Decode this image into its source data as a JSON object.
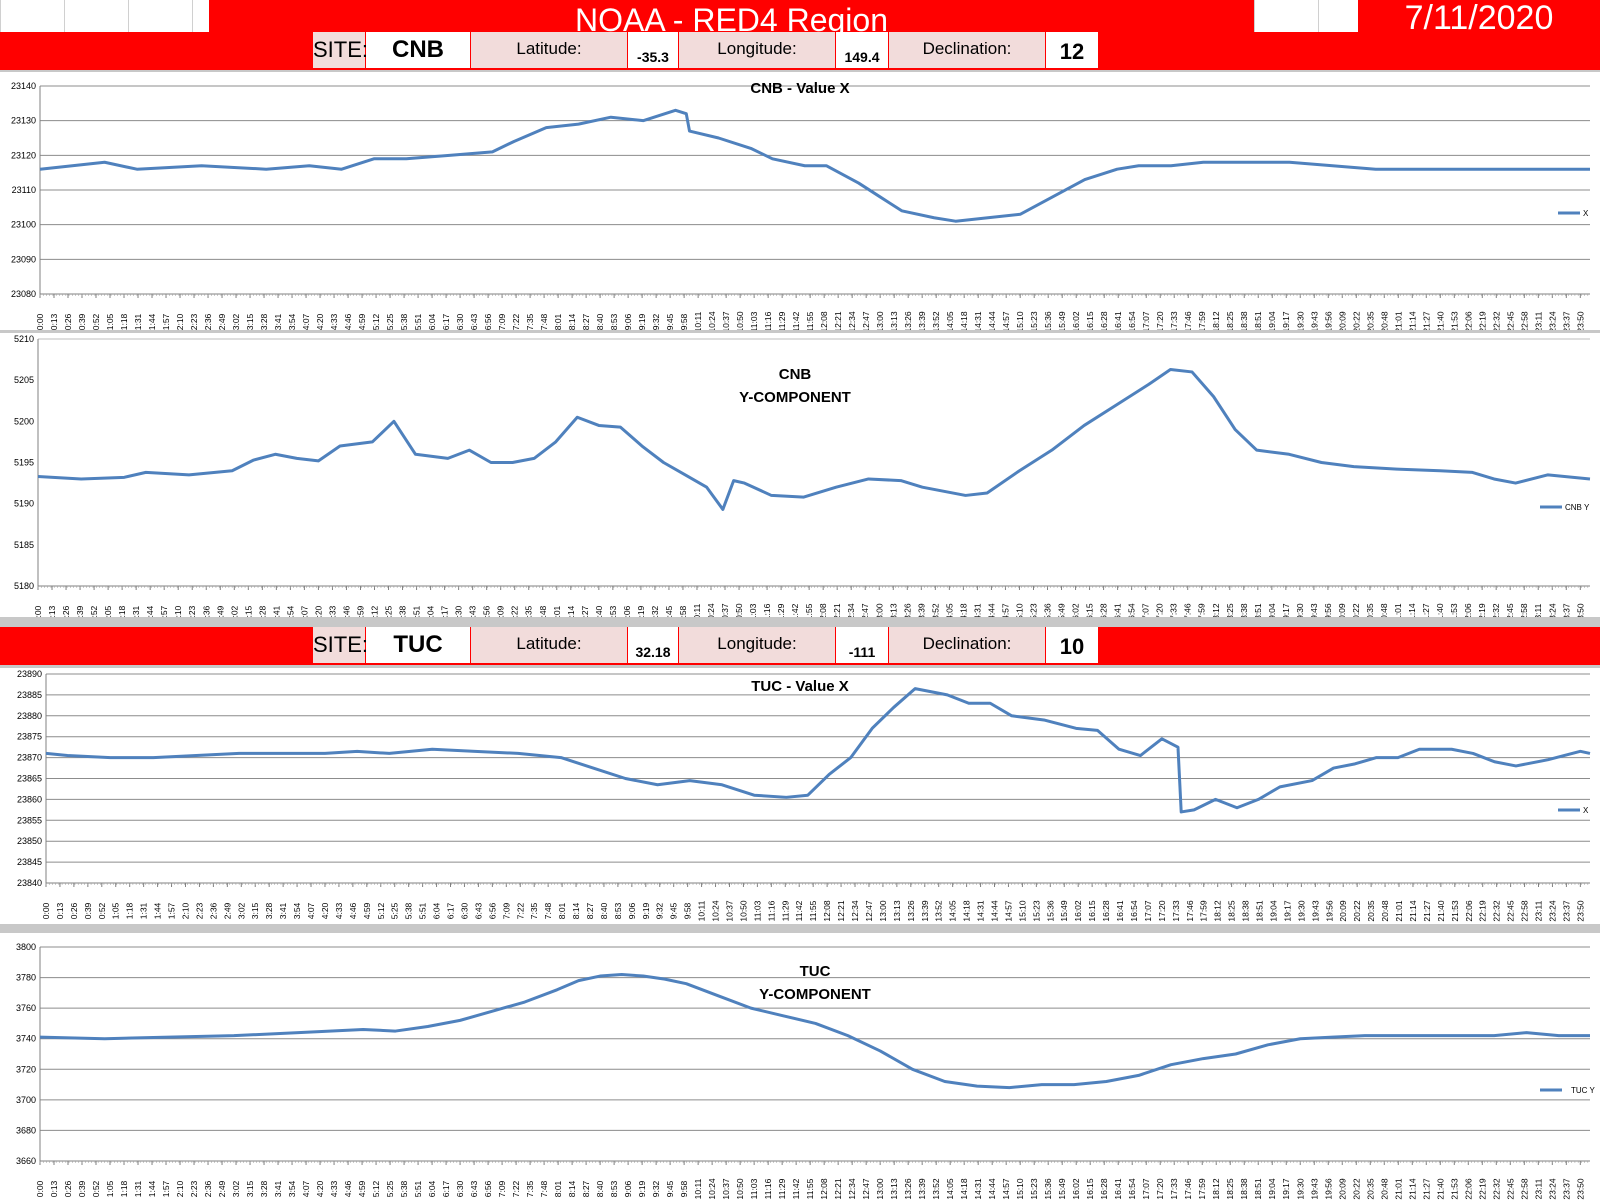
{
  "header": {
    "title": "NOAA - RED4 Region",
    "date": "7/11/2020",
    "colors": {
      "banner": "#ff0000",
      "cell": "#f2dcdb",
      "line": "#4f81bd"
    }
  },
  "sites": [
    {
      "site_label": "SITE:",
      "site": "CNB",
      "lat_label": "Latitude:",
      "lat": "-35.3",
      "lon_label": "Longitude:",
      "lon": "149.4",
      "decl_label": "Declination:",
      "decl": "12"
    },
    {
      "site_label": "SITE:",
      "site": "TUC",
      "lat_label": "Latitude:",
      "lat": "32.18",
      "lon_label": "Longitude:",
      "lon": "-111",
      "decl_label": "Declination:",
      "decl": "10"
    }
  ],
  "chart_data": [
    {
      "type": "line",
      "title": "CNB - Value X",
      "ylim": [
        23080,
        23140
      ],
      "yticks": [
        23080,
        23090,
        23100,
        23110,
        23120,
        23130,
        23140
      ],
      "x_range": [
        "0:00",
        "23:59"
      ],
      "x_tick_interval_min": 13,
      "grid": true,
      "legend_position": "right",
      "series": [
        {
          "name": "X",
          "points": [
            [
              "0:00",
              23116
            ],
            [
              "1:00",
              23118
            ],
            [
              "1:30",
              23116
            ],
            [
              "2:30",
              23117
            ],
            [
              "3:30",
              23116
            ],
            [
              "4:10",
              23117
            ],
            [
              "4:40",
              23116
            ],
            [
              "5:10",
              23119
            ],
            [
              "5:40",
              23119
            ],
            [
              "6:20",
              23120
            ],
            [
              "7:00",
              23121
            ],
            [
              "7:20",
              23124
            ],
            [
              "7:50",
              23128
            ],
            [
              "8:20",
              23129
            ],
            [
              "8:50",
              23131
            ],
            [
              "9:20",
              23130
            ],
            [
              "9:50",
              23133
            ],
            [
              "10:00",
              23132
            ],
            [
              "10:03",
              23127
            ],
            [
              "10:30",
              23125
            ],
            [
              "11:00",
              23122
            ],
            [
              "11:20",
              23119
            ],
            [
              "11:50",
              23117
            ],
            [
              "12:10",
              23117
            ],
            [
              "12:40",
              23112
            ],
            [
              "13:00",
              23108
            ],
            [
              "13:20",
              23104
            ],
            [
              "13:50",
              23102
            ],
            [
              "14:10",
              23101
            ],
            [
              "14:40",
              23102
            ],
            [
              "15:10",
              23103
            ],
            [
              "15:40",
              23108
            ],
            [
              "16:10",
              23113
            ],
            [
              "16:40",
              23116
            ],
            [
              "17:00",
              23117
            ],
            [
              "17:30",
              23117
            ],
            [
              "18:00",
              23118
            ],
            [
              "18:40",
              23118
            ],
            [
              "19:20",
              23118
            ],
            [
              "20:00",
              23117
            ],
            [
              "20:40",
              23116
            ],
            [
              "21:20",
              23116
            ],
            [
              "21:50",
              23116
            ],
            [
              "22:20",
              23116
            ],
            [
              "23:00",
              23116
            ],
            [
              "23:59",
              23116
            ]
          ]
        }
      ]
    },
    {
      "type": "line",
      "title": "CNB\nY-COMPONENT",
      "ylim": [
        5180,
        5210
      ],
      "yticks": [
        5180,
        5185,
        5190,
        5195,
        5200,
        5205,
        5210
      ],
      "x_range": [
        "0:00",
        "23:59"
      ],
      "x_tick_interval_min": 13,
      "grid": false,
      "legend_position": "right",
      "series": [
        {
          "name": "CNB Y",
          "points": [
            [
              "0:00",
              5193.3
            ],
            [
              "0:40",
              5193
            ],
            [
              "1:20",
              5193.2
            ],
            [
              "1:40",
              5193.8
            ],
            [
              "2:20",
              5193.5
            ],
            [
              "3:00",
              5194
            ],
            [
              "3:20",
              5195.3
            ],
            [
              "3:40",
              5196
            ],
            [
              "4:00",
              5195.5
            ],
            [
              "4:20",
              5195.2
            ],
            [
              "4:40",
              5197
            ],
            [
              "5:10",
              5197.5
            ],
            [
              "5:30",
              5200
            ],
            [
              "5:50",
              5196
            ],
            [
              "6:20",
              5195.5
            ],
            [
              "6:40",
              5196.5
            ],
            [
              "7:00",
              5195
            ],
            [
              "7:20",
              5195
            ],
            [
              "7:40",
              5195.5
            ],
            [
              "8:00",
              5197.5
            ],
            [
              "8:20",
              5200.5
            ],
            [
              "8:40",
              5199.5
            ],
            [
              "9:00",
              5199.3
            ],
            [
              "9:20",
              5197
            ],
            [
              "9:40",
              5195
            ],
            [
              "10:00",
              5193.5
            ],
            [
              "10:20",
              5192
            ],
            [
              "10:35",
              5189.3
            ],
            [
              "10:45",
              5192.8
            ],
            [
              "10:55",
              5192.5
            ],
            [
              "11:20",
              5191
            ],
            [
              "11:50",
              5190.8
            ],
            [
              "12:20",
              5192
            ],
            [
              "12:50",
              5193
            ],
            [
              "13:20",
              5192.8
            ],
            [
              "13:40",
              5192
            ],
            [
              "14:00",
              5191.5
            ],
            [
              "14:20",
              5191
            ],
            [
              "14:40",
              5191.3
            ],
            [
              "15:10",
              5194
            ],
            [
              "15:40",
              5196.5
            ],
            [
              "16:10",
              5199.5
            ],
            [
              "16:40",
              5202
            ],
            [
              "17:10",
              5204.5
            ],
            [
              "17:30",
              5206.3
            ],
            [
              "17:50",
              5206
            ],
            [
              "18:10",
              5203
            ],
            [
              "18:30",
              5199
            ],
            [
              "18:50",
              5196.5
            ],
            [
              "19:20",
              5196
            ],
            [
              "19:50",
              5195
            ],
            [
              "20:20",
              5194.5
            ],
            [
              "21:00",
              5194.2
            ],
            [
              "21:40",
              5194
            ],
            [
              "22:10",
              5193.8
            ],
            [
              "22:30",
              5193
            ],
            [
              "22:50",
              5192.5
            ],
            [
              "23:20",
              5193.5
            ],
            [
              "23:59",
              5193
            ]
          ]
        }
      ]
    },
    {
      "type": "line",
      "title": "TUC - Value X",
      "ylim": [
        23840,
        23890
      ],
      "yticks": [
        23840,
        23845,
        23850,
        23855,
        23860,
        23865,
        23870,
        23875,
        23880,
        23885,
        23890
      ],
      "x_range": [
        "0:00",
        "23:59"
      ],
      "x_tick_interval_min": 13,
      "grid": true,
      "legend_position": "right",
      "series": [
        {
          "name": "X",
          "points": [
            [
              "0:00",
              23871
            ],
            [
              "0:20",
              23870.5
            ],
            [
              "1:00",
              23870
            ],
            [
              "1:40",
              23870
            ],
            [
              "2:20",
              23870.5
            ],
            [
              "3:00",
              23871
            ],
            [
              "3:40",
              23871
            ],
            [
              "4:20",
              23871
            ],
            [
              "4:50",
              23871.5
            ],
            [
              "5:20",
              23871
            ],
            [
              "6:00",
              23872
            ],
            [
              "6:40",
              23871.5
            ],
            [
              "7:20",
              23871
            ],
            [
              "8:00",
              23870
            ],
            [
              "8:30",
              23867.5
            ],
            [
              "9:00",
              23865
            ],
            [
              "9:30",
              23863.5
            ],
            [
              "10:00",
              23864.5
            ],
            [
              "10:30",
              23863.5
            ],
            [
              "11:00",
              23861
            ],
            [
              "11:30",
              23860.5
            ],
            [
              "11:50",
              23861
            ],
            [
              "12:10",
              23866
            ],
            [
              "12:30",
              23870
            ],
            [
              "12:50",
              23877
            ],
            [
              "13:10",
              23882
            ],
            [
              "13:30",
              23886.5
            ],
            [
              "14:00",
              23885
            ],
            [
              "14:20",
              23883
            ],
            [
              "14:40",
              23883
            ],
            [
              "15:00",
              23880
            ],
            [
              "15:30",
              23879
            ],
            [
              "16:00",
              23877
            ],
            [
              "16:20",
              23876.5
            ],
            [
              "16:40",
              23872
            ],
            [
              "17:00",
              23870.5
            ],
            [
              "17:20",
              23874.5
            ],
            [
              "17:35",
              23872.5
            ],
            [
              "17:38",
              23857
            ],
            [
              "17:50",
              23857.5
            ],
            [
              "18:10",
              23860
            ],
            [
              "18:30",
              23858
            ],
            [
              "18:50",
              23860
            ],
            [
              "19:10",
              23863
            ],
            [
              "19:40",
              23864.5
            ],
            [
              "20:00",
              23867.5
            ],
            [
              "20:20",
              23868.5
            ],
            [
              "20:40",
              23870
            ],
            [
              "21:00",
              23870
            ],
            [
              "21:20",
              23872
            ],
            [
              "21:50",
              23872
            ],
            [
              "22:10",
              23871
            ],
            [
              "22:30",
              23869
            ],
            [
              "22:50",
              23868
            ],
            [
              "23:20",
              23869.5
            ],
            [
              "23:50",
              23871.5
            ],
            [
              "23:59",
              23871
            ]
          ]
        }
      ]
    },
    {
      "type": "line",
      "title": "TUC\nY-COMPONENT",
      "ylim": [
        3660,
        3800
      ],
      "yticks": [
        3660,
        3680,
        3700,
        3720,
        3740,
        3760,
        3780,
        3800
      ],
      "x_range": [
        "0:00",
        "23:59"
      ],
      "x_tick_interval_min": 13,
      "grid": true,
      "legend_position": "right",
      "series": [
        {
          "name": "TUC Y",
          "points": [
            [
              "0:00",
              3741
            ],
            [
              "1:00",
              3740
            ],
            [
              "2:00",
              3741
            ],
            [
              "3:00",
              3742
            ],
            [
              "4:00",
              3744
            ],
            [
              "5:00",
              3746
            ],
            [
              "5:30",
              3745
            ],
            [
              "6:00",
              3748
            ],
            [
              "6:30",
              3752
            ],
            [
              "7:00",
              3758
            ],
            [
              "7:30",
              3764
            ],
            [
              "8:00",
              3772
            ],
            [
              "8:20",
              3778
            ],
            [
              "8:40",
              3781
            ],
            [
              "9:00",
              3782
            ],
            [
              "9:20",
              3781
            ],
            [
              "9:40",
              3779
            ],
            [
              "10:00",
              3776
            ],
            [
              "10:30",
              3768
            ],
            [
              "11:00",
              3760
            ],
            [
              "11:30",
              3755
            ],
            [
              "12:00",
              3750
            ],
            [
              "12:30",
              3742
            ],
            [
              "13:00",
              3732
            ],
            [
              "13:30",
              3720
            ],
            [
              "14:00",
              3712
            ],
            [
              "14:30",
              3709
            ],
            [
              "15:00",
              3708
            ],
            [
              "15:30",
              3710
            ],
            [
              "16:00",
              3710
            ],
            [
              "16:30",
              3712
            ],
            [
              "17:00",
              3716
            ],
            [
              "17:30",
              3723
            ],
            [
              "18:00",
              3727
            ],
            [
              "18:30",
              3730
            ],
            [
              "19:00",
              3736
            ],
            [
              "19:30",
              3740
            ],
            [
              "20:00",
              3741
            ],
            [
              "20:30",
              3742
            ],
            [
              "21:30",
              3742
            ],
            [
              "22:30",
              3742
            ],
            [
              "23:00",
              3744
            ],
            [
              "23:30",
              3742
            ],
            [
              "23:59",
              3742
            ]
          ]
        }
      ]
    }
  ]
}
